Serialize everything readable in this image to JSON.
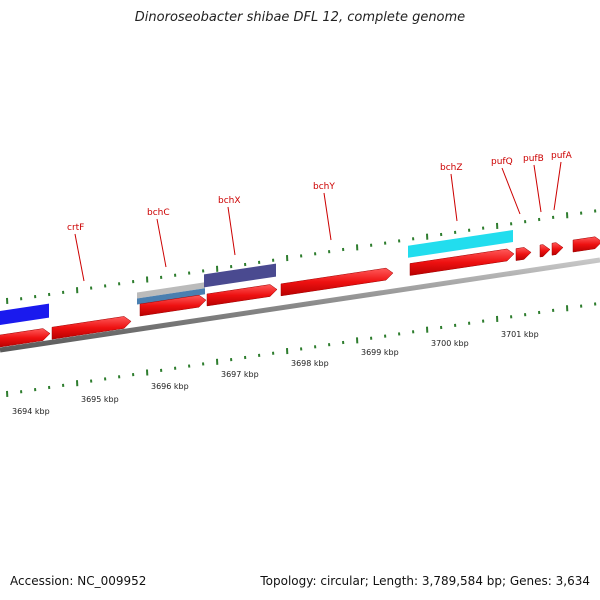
{
  "title": "Dinoroseobacter shibae DFL 12, complete genome",
  "accession": "Accession: NC_009952",
  "summary": "Topology: circular; Length: 3,789,584 bp; Genes: 3,634",
  "colors": {
    "backbone": "#8a8a8a",
    "cds": "#ee1111",
    "tick": "#2e7d2e",
    "label": "#cc0000",
    "blue": "#1a1aee",
    "gray": "#bbbbbb",
    "steel": "#4a7fb0",
    "indigo": "#4a4a90",
    "cyan": "#22ddee"
  },
  "gene_labels": [
    {
      "name": "crtF"
    },
    {
      "name": "bchC"
    },
    {
      "name": "bchX"
    },
    {
      "name": "bchY"
    },
    {
      "name": "bchZ"
    },
    {
      "name": "pufQ"
    },
    {
      "name": "pufB"
    },
    {
      "name": "pufA"
    }
  ],
  "kbp_labels": [
    "3694 kbp",
    "3695 kbp",
    "3696 kbp",
    "3697 kbp",
    "3698 kbp",
    "3699 kbp",
    "3700 kbp",
    "3701 kbp"
  ]
}
